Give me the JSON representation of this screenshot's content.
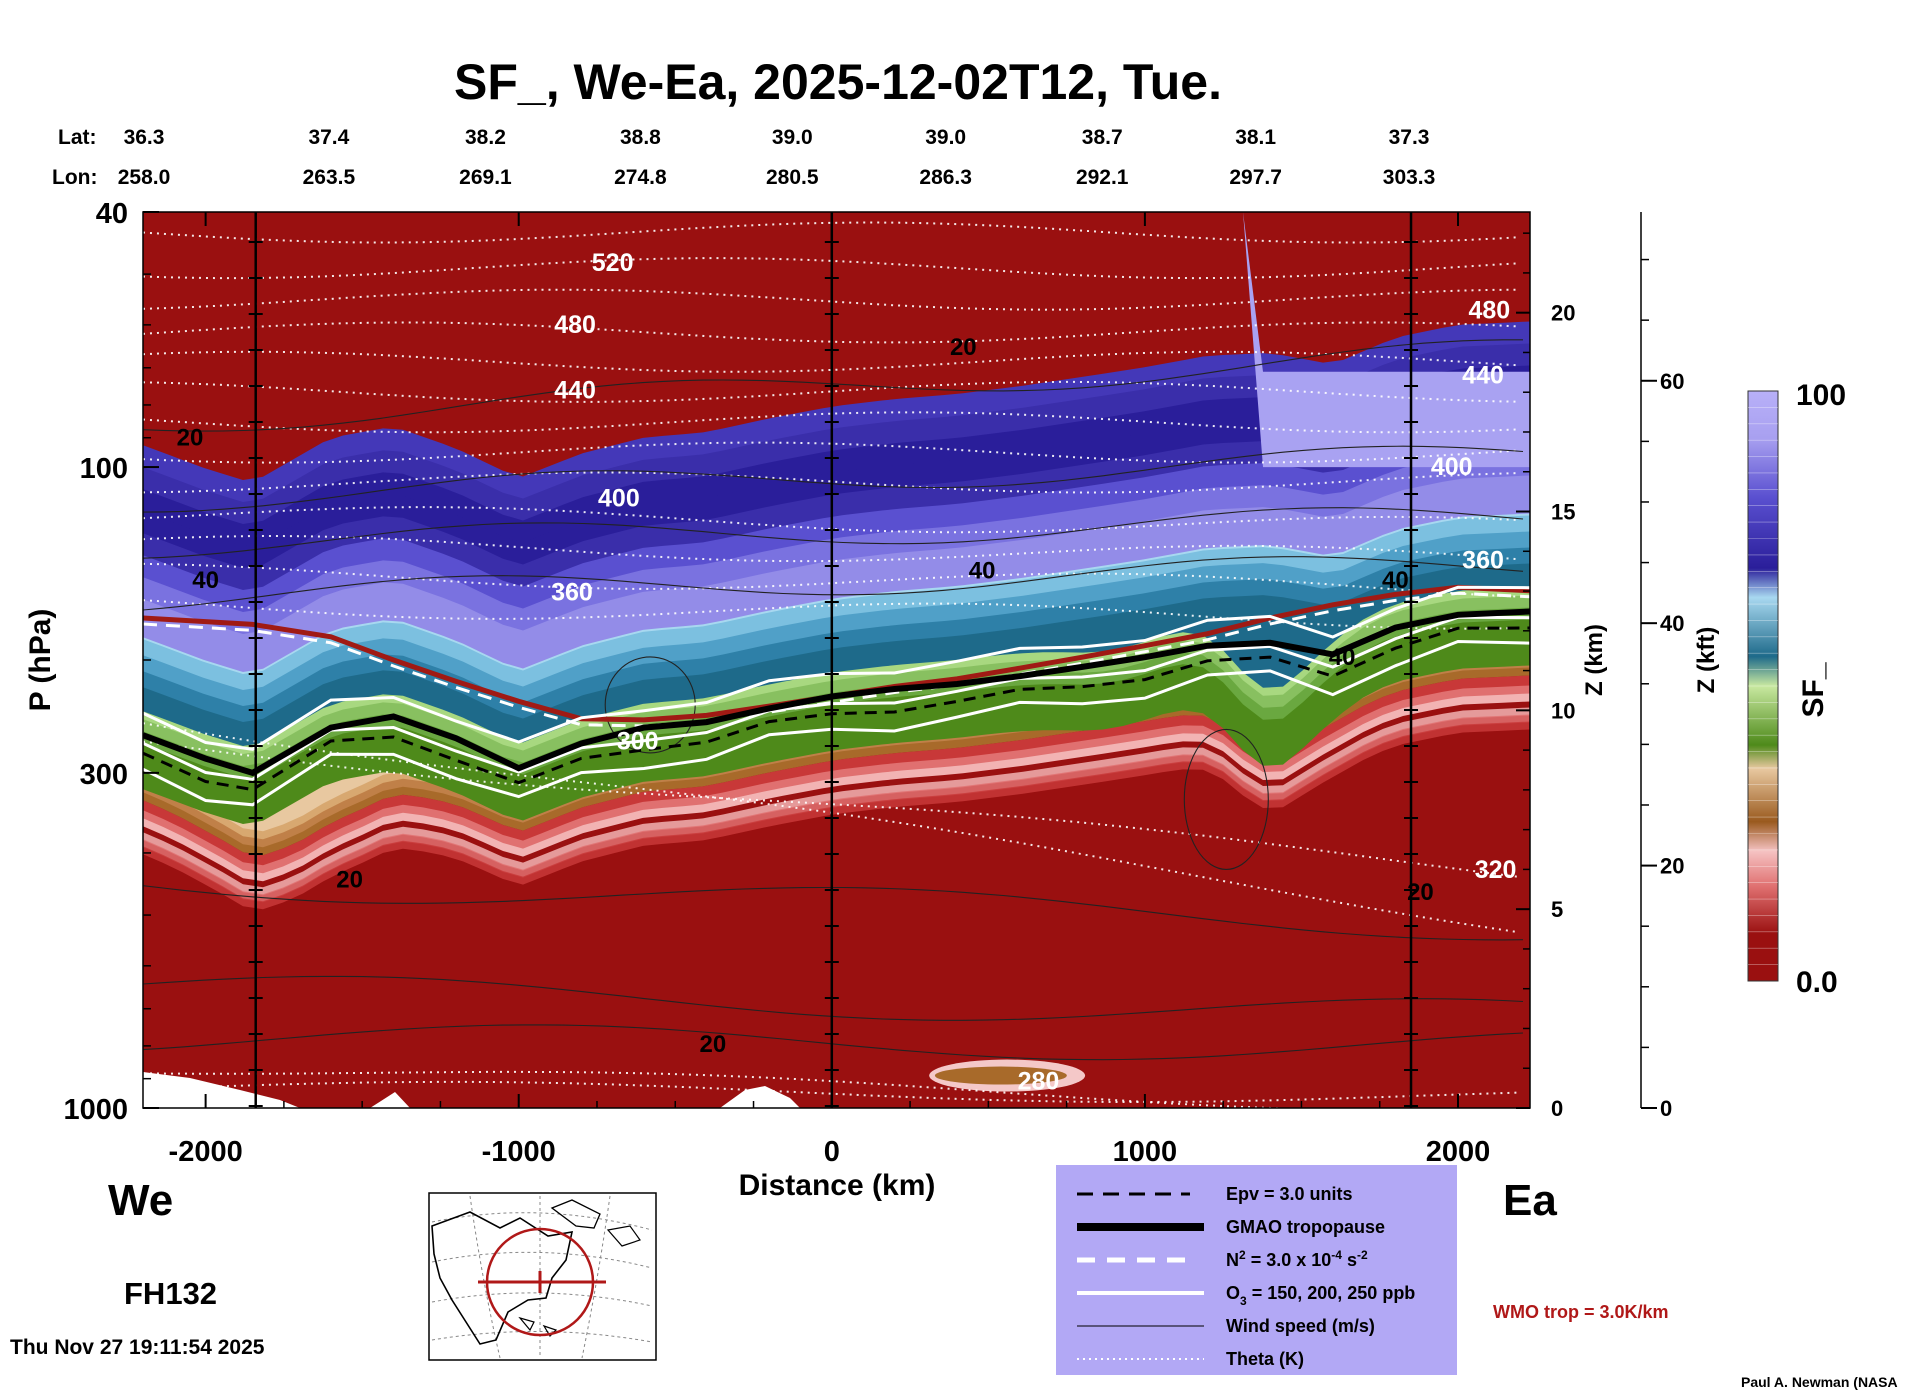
{
  "chart_data": {
    "type": "heatmap",
    "title": "SF_, We-Ea, 2025-12-02T12, Tue.",
    "xlabel": "Distance (km)",
    "ylabel": "P (hPa)",
    "y2label": "Z (km)",
    "y3label": "Z (kft)",
    "colorbar_label": "SF_",
    "xlim": [
      -2200,
      2230
    ],
    "ylim": [
      1000,
      40
    ],
    "yscale": "log",
    "x_ticks": [
      -2000,
      -1000,
      0,
      1000,
      2000
    ],
    "x_tick_labels": [
      "-2000",
      "-1000",
      "0",
      "1000",
      "2000"
    ],
    "p_ticks": [
      40,
      100,
      300,
      1000
    ],
    "p_tick_labels": [
      "40",
      "100",
      "300",
      "1000"
    ],
    "z_km_ticks": [
      0,
      5,
      10,
      15,
      20
    ],
    "z_km_tick_labels": [
      "0",
      "5",
      "10",
      "15",
      "20"
    ],
    "z_kft_ticks": [
      0,
      20,
      40,
      60
    ],
    "z_kft_tick_labels": [
      "0",
      "20",
      "40",
      "60"
    ],
    "colorbar_range": [
      0.0,
      100
    ],
    "colorbar_tick_labels": [
      "100",
      "0.0"
    ],
    "cross_section_markers_km": [
      -1840,
      0,
      1850
    ],
    "lat_label": "Lat:",
    "lon_label": "Lon:",
    "lat_lon_positions_km": [
      -2240,
      -1750,
      -1250,
      -755,
      -270,
      220,
      720,
      1210,
      1700
    ],
    "lat": [
      "36.3",
      "37.4",
      "38.2",
      "38.8",
      "39.0",
      "39.0",
      "38.7",
      "38.1",
      "37.3"
    ],
    "lon": [
      "258.0",
      "263.5",
      "269.1",
      "274.8",
      "280.5",
      "286.3",
      "292.1",
      "297.7",
      "303.3"
    ],
    "tropopause_profile": {
      "x_km": [
        -2200,
        -2000,
        -1850,
        -1600,
        -1400,
        -1200,
        -1000,
        -800,
        -600,
        -400,
        -200,
        0,
        200,
        400,
        600,
        800,
        1000,
        1200,
        1400,
        1600,
        1800,
        2000,
        2230
      ],
      "p_hpa": [
        262,
        285,
        300,
        255,
        245,
        265,
        295,
        270,
        255,
        250,
        238,
        228,
        222,
        218,
        212,
        205,
        198,
        190,
        188,
        196,
        178,
        170,
        168
      ]
    },
    "theta_labels": [
      {
        "value": "520",
        "x_km": -700,
        "p_hpa": 48
      },
      {
        "value": "480",
        "x_km": -820,
        "p_hpa": 60
      },
      {
        "value": "440",
        "x_km": -820,
        "p_hpa": 76
      },
      {
        "value": "400",
        "x_km": -680,
        "p_hpa": 112
      },
      {
        "value": "360",
        "x_km": -830,
        "p_hpa": 157
      },
      {
        "value": "300",
        "x_km": -620,
        "p_hpa": 268
      },
      {
        "value": "480",
        "x_km": 2100,
        "p_hpa": 57
      },
      {
        "value": "440",
        "x_km": 2080,
        "p_hpa": 72
      },
      {
        "value": "400",
        "x_km": 1980,
        "p_hpa": 100
      },
      {
        "value": "360",
        "x_km": 2080,
        "p_hpa": 140
      },
      {
        "value": "320",
        "x_km": 2120,
        "p_hpa": 425
      },
      {
        "value": "280",
        "x_km": 660,
        "p_hpa": 910
      }
    ],
    "wind_labels": [
      {
        "value": "20",
        "x_km": -2050,
        "p_hpa": 90
      },
      {
        "value": "20",
        "x_km": 420,
        "p_hpa": 65
      },
      {
        "value": "40",
        "x_km": -2000,
        "p_hpa": 150
      },
      {
        "value": "40",
        "x_km": 480,
        "p_hpa": 145
      },
      {
        "value": "40",
        "x_km": 1800,
        "p_hpa": 150
      },
      {
        "value": "40",
        "x_km": 1630,
        "p_hpa": 198
      },
      {
        "value": "20",
        "x_km": -1540,
        "p_hpa": 440
      },
      {
        "value": "20",
        "x_km": -380,
        "p_hpa": 795
      },
      {
        "value": "20",
        "x_km": 1880,
        "p_hpa": 460
      }
    ]
  },
  "colors": {
    "colorbar_stops": [
      "#9a1010",
      "#d04a4a",
      "#f2b3b3",
      "#a86a2a",
      "#e8c8a0",
      "#4e8a1a",
      "#c8e8a0",
      "#1e6a8a",
      "#a8d8f0",
      "#2a1e9a",
      "#a8a0f0"
    ],
    "tropopause_red": "#a01a14",
    "legend_bg": "#b2a8f5"
  },
  "labels": {
    "west": "We",
    "east": "Ea",
    "forecast_hour": "FH132",
    "timestamp": "Thu Nov 27 19:11:54 2025",
    "wmo": "WMO trop = 3.0K/km",
    "credit": "Paul A. Newman (NASA"
  },
  "legend": {
    "epv": "Epv = 3.0 units",
    "gmao": "GMAO tropopause",
    "n2_prefix": "N",
    "n2_sup": "2",
    "n2_mid": " = 3.0 x 10",
    "n2_exp": "-4",
    "n2_unit": " s",
    "n2_unit_exp": "-2",
    "o3_prefix": "O",
    "o3_sub": "3",
    "o3_rest": " = 150, 200, 250 ppb",
    "wind": "Wind speed (m/s)",
    "theta": "Theta (K)"
  }
}
